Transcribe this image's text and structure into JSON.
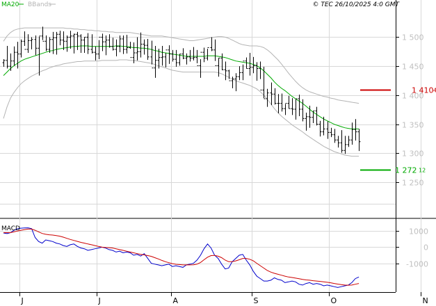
{
  "header": {
    "ma_label": "MA20",
    "bb_label": "BBands",
    "copyright": "© TEC 26/10/2025 4:0 GMT",
    "ma_color": "#00aa00",
    "bb_color": "#b4b4b4"
  },
  "price_axis": {
    "ticks": [
      "1 500",
      "1 450",
      "1 400",
      "1 350",
      "1 300",
      "1 250"
    ],
    "tick_values": [
      1500,
      1450,
      1400,
      1350,
      1300,
      1250
    ],
    "range": [
      1188,
      1564
    ],
    "resistance": {
      "label": "1 410",
      "suffix": "4",
      "value": 1410,
      "color": "#cc0000"
    },
    "support": {
      "label": "1 272",
      "suffix": "12",
      "value": 1272,
      "color": "#00aa00"
    }
  },
  "macd_panel": {
    "title": "MACD",
    "ticks": [
      "1000",
      "0",
      "-1000"
    ],
    "tick_values": [
      1000,
      0,
      -1000
    ],
    "range": [
      -2700,
      1700
    ],
    "macd_color": "#0000cc",
    "signal_color": "#cc0000"
  },
  "time_axis": {
    "labels": [
      "J",
      "J",
      "A",
      "S",
      "O",
      "N"
    ],
    "label_bars": [
      2,
      24,
      45,
      68,
      90,
      116
    ]
  },
  "chart_data": {
    "type": "ohlc",
    "bar_count": 102,
    "price": {
      "highs": [
        1462,
        1485,
        1472,
        1484,
        1492,
        1496,
        1510,
        1505,
        1500,
        1503,
        1501,
        1518,
        1503,
        1500,
        1509,
        1509,
        1511,
        1510,
        1503,
        1511,
        1506,
        1509,
        1505,
        1500,
        1507,
        1505,
        1484,
        1495,
        1506,
        1503,
        1505,
        1499,
        1496,
        1503,
        1503,
        1504,
        1492,
        1491,
        1500,
        1508,
        1496,
        1497,
        1494,
        1485,
        1480,
        1485,
        1473,
        1486,
        1478,
        1478,
        1471,
        1481,
        1472,
        1478,
        1483,
        1478,
        1462,
        1482,
        1480,
        1500,
        1496,
        1464,
        1472,
        1458,
        1444,
        1432,
        1438,
        1450,
        1453,
        1465,
        1473,
        1466,
        1457,
        1458,
        1449,
        1411,
        1422,
        1412,
        1402,
        1403,
        1385,
        1399,
        1395,
        1393,
        1401,
        1393,
        1370,
        1382,
        1373,
        1380,
        1356,
        1363,
        1355,
        1344,
        1342,
        1330,
        1340,
        1330,
        1330,
        1353,
        1359,
        1342
      ],
      "lows": [
        1449,
        1446,
        1442,
        1451,
        1446,
        1465,
        1485,
        1473,
        1479,
        1469,
        1434,
        1495,
        1476,
        1473,
        1471,
        1470,
        1486,
        1478,
        1475,
        1480,
        1472,
        1478,
        1473,
        1473,
        1471,
        1472,
        1460,
        1462,
        1476,
        1469,
        1482,
        1477,
        1467,
        1474,
        1471,
        1472,
        1480,
        1455,
        1460,
        1465,
        1470,
        1461,
        1453,
        1430,
        1446,
        1451,
        1448,
        1454,
        1458,
        1449,
        1451,
        1462,
        1453,
        1458,
        1460,
        1455,
        1430,
        1457,
        1460,
        1476,
        1459,
        1432,
        1443,
        1426,
        1428,
        1412,
        1407,
        1426,
        1426,
        1446,
        1434,
        1438,
        1425,
        1428,
        1395,
        1380,
        1383,
        1384,
        1369,
        1372,
        1366,
        1377,
        1366,
        1358,
        1364,
        1355,
        1339,
        1344,
        1352,
        1348,
        1329,
        1331,
        1325,
        1328,
        1318,
        1310,
        1301,
        1299,
        1311,
        1315,
        1322,
        1304
      ],
      "opens": [
        1456,
        1460,
        1450,
        1459,
        1474,
        1471,
        1493,
        1479,
        1494,
        1496,
        1481,
        1502,
        1493,
        1479,
        1496,
        1499,
        1505,
        1495,
        1493,
        1500,
        1502,
        1505,
        1502,
        1495,
        1500,
        1479,
        1474,
        1471,
        1500,
        1492,
        1495,
        1484,
        1479,
        1484,
        1497,
        1479,
        1482,
        1465,
        1473,
        1475,
        1488,
        1486,
        1466,
        1447,
        1460,
        1465,
        1466,
        1478,
        1471,
        1462,
        1456,
        1471,
        1464,
        1466,
        1464,
        1465,
        1451,
        1474,
        1464,
        1482,
        1478,
        1451,
        1464,
        1444,
        1442,
        1425,
        1428,
        1432,
        1439,
        1459,
        1446,
        1448,
        1451,
        1446,
        1409,
        1394,
        1404,
        1402,
        1386,
        1386,
        1377,
        1386,
        1377,
        1376,
        1394,
        1376,
        1360,
        1363,
        1362,
        1373,
        1350,
        1337,
        1342,
        1336,
        1332,
        1323,
        1318,
        1305,
        1315,
        1323,
        1341,
        1337
      ],
      "closes": [
        1460,
        1450,
        1459,
        1474,
        1471,
        1493,
        1479,
        1494,
        1496,
        1481,
        1502,
        1493,
        1479,
        1496,
        1499,
        1505,
        1495,
        1493,
        1500,
        1502,
        1505,
        1502,
        1495,
        1500,
        1479,
        1474,
        1471,
        1500,
        1492,
        1495,
        1484,
        1479,
        1484,
        1497,
        1479,
        1482,
        1465,
        1473,
        1475,
        1488,
        1486,
        1466,
        1447,
        1460,
        1465,
        1466,
        1478,
        1471,
        1462,
        1456,
        1471,
        1464,
        1466,
        1464,
        1465,
        1451,
        1474,
        1464,
        1482,
        1478,
        1451,
        1464,
        1444,
        1442,
        1425,
        1428,
        1432,
        1439,
        1459,
        1446,
        1448,
        1451,
        1446,
        1409,
        1394,
        1404,
        1402,
        1386,
        1386,
        1377,
        1386,
        1377,
        1376,
        1394,
        1376,
        1360,
        1363,
        1362,
        1373,
        1350,
        1337,
        1342,
        1336,
        1332,
        1323,
        1318,
        1305,
        1315,
        1323,
        1341,
        1337,
        1320
      ],
      "ma20": [
        1434,
        1440,
        1446,
        1451,
        1455,
        1459,
        1462,
        1464,
        1466,
        1468,
        1470,
        1472,
        1474,
        1476,
        1477,
        1479,
        1480,
        1481,
        1482,
        1483,
        1484,
        1484,
        1485,
        1485,
        1485,
        1484,
        1484,
        1484,
        1484,
        1484,
        1484,
        1484,
        1485,
        1485,
        1484,
        1484,
        1483,
        1482,
        1482,
        1481,
        1481,
        1480,
        1479,
        1477,
        1476,
        1474,
        1473,
        1472,
        1471,
        1470,
        1469,
        1468,
        1467,
        1467,
        1467,
        1467,
        1467,
        1467,
        1468,
        1468,
        1468,
        1467,
        1466,
        1465,
        1463,
        1461,
        1459,
        1458,
        1457,
        1456,
        1455,
        1453,
        1451,
        1447,
        1442,
        1436,
        1430,
        1423,
        1417,
        1412,
        1408,
        1403,
        1398,
        1394,
        1390,
        1386,
        1381,
        1376,
        1371,
        1367,
        1363,
        1359,
        1356,
        1353,
        1350,
        1348,
        1346,
        1344,
        1343,
        1342,
        1342,
        1342
      ],
      "bb_upper": [
        1493,
        1502,
        1508,
        1512,
        1514,
        1515,
        1516,
        1516,
        1516,
        1516,
        1516,
        1516,
        1516,
        1516,
        1516,
        1516,
        1516,
        1516,
        1515,
        1515,
        1514,
        1514,
        1513,
        1513,
        1512,
        1512,
        1511,
        1511,
        1510,
        1510,
        1509,
        1509,
        1508,
        1508,
        1508,
        1508,
        1508,
        1507,
        1506,
        1505,
        1504,
        1503,
        1502,
        1502,
        1502,
        1502,
        1501,
        1500,
        1499,
        1498,
        1497,
        1496,
        1495,
        1494,
        1494,
        1495,
        1496,
        1497,
        1498,
        1499,
        1500,
        1501,
        1501,
        1500,
        1498,
        1495,
        1492,
        1489,
        1487,
        1486,
        1485,
        1485,
        1485,
        1484,
        1482,
        1478,
        1473,
        1467,
        1461,
        1454,
        1446,
        1438,
        1431,
        1424,
        1418,
        1413,
        1409,
        1406,
        1404,
        1402,
        1400,
        1398,
        1397,
        1395,
        1394,
        1392,
        1391,
        1390,
        1389,
        1388,
        1387,
        1386
      ],
      "bb_lower": [
        1360,
        1380,
        1395,
        1405,
        1413,
        1420,
        1425,
        1429,
        1433,
        1436,
        1439,
        1442,
        1444,
        1447,
        1449,
        1451,
        1452,
        1454,
        1455,
        1456,
        1457,
        1458,
        1458,
        1459,
        1459,
        1459,
        1459,
        1459,
        1460,
        1460,
        1460,
        1460,
        1460,
        1461,
        1461,
        1461,
        1460,
        1460,
        1459,
        1458,
        1457,
        1456,
        1455,
        1453,
        1451,
        1449,
        1447,
        1445,
        1443,
        1442,
        1441,
        1440,
        1440,
        1440,
        1440,
        1440,
        1440,
        1440,
        1440,
        1440,
        1440,
        1439,
        1437,
        1434,
        1431,
        1428,
        1425,
        1423,
        1421,
        1419,
        1417,
        1414,
        1411,
        1406,
        1400,
        1393,
        1385,
        1377,
        1370,
        1364,
        1359,
        1354,
        1349,
        1345,
        1341,
        1337,
        1332,
        1328,
        1324,
        1320,
        1316,
        1312,
        1309,
        1306,
        1303,
        1301,
        1299,
        1297,
        1296,
        1295,
        1295,
        1295
      ]
    },
    "macd": {
      "macd_line": [
        880,
        840,
        900,
        1050,
        1150,
        1180,
        1190,
        1200,
        1150,
        600,
        350,
        250,
        450,
        400,
        350,
        250,
        200,
        100,
        50,
        150,
        200,
        50,
        -50,
        -100,
        -200,
        -150,
        -100,
        -50,
        0,
        -50,
        -150,
        -200,
        -300,
        -250,
        -350,
        -300,
        -350,
        -500,
        -450,
        -550,
        -400,
        -700,
        -1000,
        -1050,
        -1100,
        -1150,
        -1100,
        -1050,
        -1200,
        -1150,
        -1200,
        -1250,
        -1100,
        -1050,
        -1000,
        -800,
        -500,
        -100,
        200,
        -50,
        -500,
        -700,
        -1050,
        -1350,
        -1300,
        -900,
        -700,
        -500,
        -450,
        -800,
        -1100,
        -1500,
        -1800,
        -1950,
        -2100,
        -2100,
        -2050,
        -1900,
        -2000,
        -2050,
        -2200,
        -2150,
        -2100,
        -2150,
        -2300,
        -2350,
        -2250,
        -2200,
        -2300,
        -2250,
        -2300,
        -2400,
        -2350,
        -2400,
        -2450,
        -2500,
        -2450,
        -2400,
        -2350,
        -2200,
        -1950,
        -1850
      ],
      "signal_line": [
        900,
        900,
        900,
        950,
        1000,
        1050,
        1090,
        1120,
        1120,
        1050,
        950,
        850,
        800,
        770,
        750,
        720,
        680,
        620,
        550,
        480,
        420,
        360,
        300,
        250,
        200,
        150,
        100,
        50,
        0,
        -20,
        -30,
        -50,
        -100,
        -150,
        -200,
        -250,
        -300,
        -350,
        -400,
        -450,
        -480,
        -520,
        -570,
        -650,
        -730,
        -820,
        -900,
        -960,
        -1020,
        -1060,
        -1080,
        -1100,
        -1100,
        -1100,
        -1090,
        -1050,
        -950,
        -780,
        -620,
        -520,
        -510,
        -560,
        -650,
        -800,
        -900,
        -900,
        -850,
        -780,
        -700,
        -700,
        -750,
        -850,
        -1000,
        -1150,
        -1300,
        -1450,
        -1550,
        -1620,
        -1680,
        -1740,
        -1800,
        -1850,
        -1880,
        -1920,
        -1960,
        -2000,
        -2030,
        -2050,
        -2080,
        -2100,
        -2120,
        -2150,
        -2180,
        -2210,
        -2250,
        -2290,
        -2320,
        -2350,
        -2360,
        -2350,
        -2300,
        -2250
      ]
    }
  }
}
